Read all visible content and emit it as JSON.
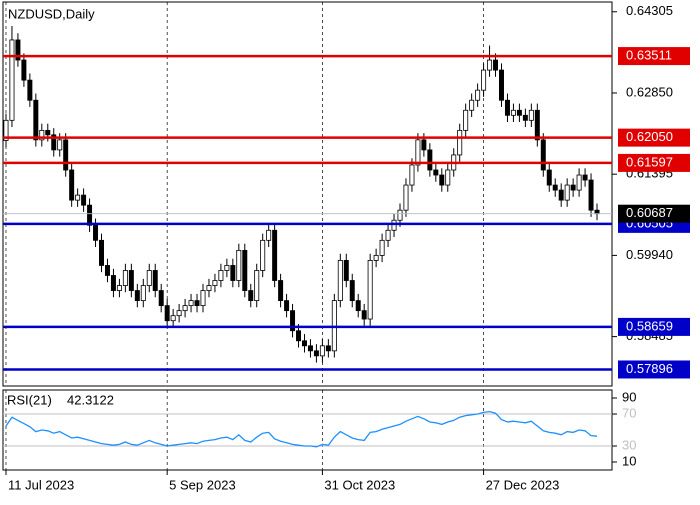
{
  "chart_data": {
    "type": "candlestick",
    "title": "NZDUSD,Daily",
    "ohlc": [
      [
        0.62,
        0.6248,
        0.6188,
        0.6236
      ],
      [
        0.6236,
        0.6405,
        0.6224,
        0.638
      ],
      [
        0.638,
        0.6392,
        0.6332,
        0.6344
      ],
      [
        0.6344,
        0.6356,
        0.6296,
        0.6308
      ],
      [
        0.6308,
        0.632,
        0.626,
        0.6272
      ],
      [
        0.6272,
        0.6284,
        0.6189,
        0.6201
      ],
      [
        0.6201,
        0.623,
        0.6189,
        0.6218
      ],
      [
        0.6218,
        0.623,
        0.6198,
        0.621
      ],
      [
        0.621,
        0.6222,
        0.6171,
        0.6183
      ],
      [
        0.6183,
        0.6213,
        0.6171,
        0.6201
      ],
      [
        0.6201,
        0.6213,
        0.6135,
        0.6147
      ],
      [
        0.6147,
        0.6159,
        0.6081,
        0.6093
      ],
      [
        0.6093,
        0.6114,
        0.6081,
        0.6102
      ],
      [
        0.6102,
        0.6114,
        0.6072,
        0.6084
      ],
      [
        0.6084,
        0.6096,
        0.6036,
        0.6048
      ],
      [
        0.6048,
        0.606,
        0.6009,
        0.6021
      ],
      [
        0.6021,
        0.6033,
        0.5964,
        0.5976
      ],
      [
        0.5976,
        0.5988,
        0.5946,
        0.5958
      ],
      [
        0.5958,
        0.597,
        0.5919,
        0.5931
      ],
      [
        0.5931,
        0.5952,
        0.5919,
        0.594
      ],
      [
        0.594,
        0.5979,
        0.5928,
        0.5967
      ],
      [
        0.5967,
        0.5979,
        0.5919,
        0.5931
      ],
      [
        0.5931,
        0.5943,
        0.5901,
        0.5913
      ],
      [
        0.5913,
        0.5952,
        0.5901,
        0.594
      ],
      [
        0.594,
        0.5979,
        0.5928,
        0.5967
      ],
      [
        0.5967,
        0.5979,
        0.5919,
        0.5931
      ],
      [
        0.5931,
        0.5943,
        0.5892,
        0.5904
      ],
      [
        0.5904,
        0.5916,
        0.5865,
        0.5877
      ],
      [
        0.5877,
        0.5898,
        0.5865,
        0.5886
      ],
      [
        0.5886,
        0.5907,
        0.5874,
        0.5895
      ],
      [
        0.5895,
        0.5916,
        0.5883,
        0.5904
      ],
      [
        0.5904,
        0.5925,
        0.5892,
        0.5913
      ],
      [
        0.5913,
        0.5925,
        0.5892,
        0.5904
      ],
      [
        0.5904,
        0.5943,
        0.5892,
        0.5931
      ],
      [
        0.5931,
        0.5952,
        0.5919,
        0.594
      ],
      [
        0.594,
        0.5961,
        0.5928,
        0.5949
      ],
      [
        0.5949,
        0.5979,
        0.5937,
        0.5967
      ],
      [
        0.5967,
        0.5988,
        0.5955,
        0.5976
      ],
      [
        0.5976,
        0.5988,
        0.5937,
        0.5949
      ],
      [
        0.5949,
        0.6015,
        0.5937,
        0.6003
      ],
      [
        0.6003,
        0.6015,
        0.5919,
        0.5931
      ],
      [
        0.5931,
        0.5943,
        0.5901,
        0.5913
      ],
      [
        0.5913,
        0.5979,
        0.5901,
        0.5967
      ],
      [
        0.5967,
        0.6033,
        0.5955,
        0.6021
      ],
      [
        0.6021,
        0.6051,
        0.6009,
        0.6039
      ],
      [
        0.6039,
        0.6051,
        0.5937,
        0.5949
      ],
      [
        0.5949,
        0.5961,
        0.5901,
        0.5913
      ],
      [
        0.5913,
        0.5925,
        0.5883,
        0.5895
      ],
      [
        0.5895,
        0.5907,
        0.5847,
        0.5859
      ],
      [
        0.5859,
        0.5871,
        0.5829,
        0.5841
      ],
      [
        0.5841,
        0.5853,
        0.582,
        0.5832
      ],
      [
        0.5832,
        0.5844,
        0.5811,
        0.5823
      ],
      [
        0.5823,
        0.5835,
        0.5802,
        0.5814
      ],
      [
        0.5814,
        0.5844,
        0.5802,
        0.5832
      ],
      [
        0.5832,
        0.5844,
        0.5811,
        0.5823
      ],
      [
        0.5823,
        0.5925,
        0.5811,
        0.5913
      ],
      [
        0.5913,
        0.5997,
        0.5901,
        0.5985
      ],
      [
        0.5985,
        0.5997,
        0.5937,
        0.5949
      ],
      [
        0.5949,
        0.5961,
        0.5901,
        0.5913
      ],
      [
        0.5913,
        0.5925,
        0.5883,
        0.5895
      ],
      [
        0.5895,
        0.5907,
        0.5868,
        0.588
      ],
      [
        0.588,
        0.5997,
        0.5868,
        0.5985
      ],
      [
        0.5985,
        0.6006,
        0.5973,
        0.5994
      ],
      [
        0.5994,
        0.6033,
        0.5982,
        0.6021
      ],
      [
        0.6021,
        0.6051,
        0.6009,
        0.6039
      ],
      [
        0.6039,
        0.6069,
        0.6027,
        0.6057
      ],
      [
        0.6057,
        0.6087,
        0.6045,
        0.6075
      ],
      [
        0.6075,
        0.6132,
        0.6063,
        0.612
      ],
      [
        0.612,
        0.6168,
        0.6108,
        0.6156
      ],
      [
        0.6156,
        0.6213,
        0.6144,
        0.6201
      ],
      [
        0.6201,
        0.6213,
        0.6171,
        0.6183
      ],
      [
        0.6183,
        0.6195,
        0.6135,
        0.6147
      ],
      [
        0.6147,
        0.6159,
        0.6126,
        0.6138
      ],
      [
        0.6138,
        0.615,
        0.6108,
        0.612
      ],
      [
        0.612,
        0.6159,
        0.6108,
        0.6147
      ],
      [
        0.6147,
        0.6186,
        0.6135,
        0.6174
      ],
      [
        0.6174,
        0.623,
        0.6162,
        0.6218
      ],
      [
        0.6218,
        0.6266,
        0.6206,
        0.6254
      ],
      [
        0.6254,
        0.6284,
        0.6242,
        0.6272
      ],
      [
        0.6272,
        0.6302,
        0.626,
        0.629
      ],
      [
        0.629,
        0.6338,
        0.6278,
        0.6326
      ],
      [
        0.6326,
        0.637,
        0.6314,
        0.6344
      ],
      [
        0.6344,
        0.6356,
        0.6314,
        0.6326
      ],
      [
        0.6326,
        0.6338,
        0.626,
        0.6272
      ],
      [
        0.6272,
        0.6284,
        0.6233,
        0.6245
      ],
      [
        0.6245,
        0.6266,
        0.6233,
        0.6254
      ],
      [
        0.6254,
        0.6266,
        0.6233,
        0.6245
      ],
      [
        0.6245,
        0.6257,
        0.6224,
        0.6236
      ],
      [
        0.6236,
        0.6266,
        0.6224,
        0.6254
      ],
      [
        0.6254,
        0.6266,
        0.6189,
        0.6201
      ],
      [
        0.6201,
        0.6213,
        0.6135,
        0.6147
      ],
      [
        0.6147,
        0.6159,
        0.6108,
        0.612
      ],
      [
        0.612,
        0.6132,
        0.6099,
        0.6111
      ],
      [
        0.6111,
        0.6123,
        0.6081,
        0.6093
      ],
      [
        0.6093,
        0.6132,
        0.6081,
        0.612
      ],
      [
        0.612,
        0.6132,
        0.6099,
        0.6111
      ],
      [
        0.6111,
        0.615,
        0.6099,
        0.6138
      ],
      [
        0.6138,
        0.615,
        0.6117,
        0.6129
      ],
      [
        0.6129,
        0.6141,
        0.6063,
        0.6075
      ],
      [
        0.6075,
        0.6087,
        0.6057,
        0.60687
      ]
    ],
    "current_price": 0.60687,
    "levels": [
      {
        "value": 0.63511,
        "color": "#e00000"
      },
      {
        "value": 0.6205,
        "label": "0.62050",
        "color": "#e00000"
      },
      {
        "value": 0.61597,
        "color": "#e00000"
      },
      {
        "value": 0.60505,
        "color": "#0000c8"
      },
      {
        "value": 0.58659,
        "color": "#0000c8"
      },
      {
        "value": 0.57896,
        "color": "#0000c8"
      }
    ],
    "ylim": [
      0.576,
      0.6448
    ],
    "yticks": [
      0.64305,
      {
        "value": 0.6285,
        "label": "0.62850"
      },
      0.61395,
      {
        "value": 0.5994,
        "label": "0.59940"
      },
      0.58485
    ],
    "xticks": [
      {
        "value": 0,
        "label": "11 Jul 2023"
      },
      {
        "value": 27,
        "label": "5 Sep 2023"
      },
      {
        "value": 53,
        "label": "31 Oct 2023"
      },
      {
        "value": 80,
        "label": "27 Dec 2023"
      }
    ],
    "grid": true,
    "rsi": {
      "name": "RSI(21)",
      "color": "#1e90ff",
      "ylim": [
        0,
        100
      ],
      "yticks": [
        90,
        70,
        30,
        10
      ],
      "levels": [
        70,
        30
      ],
      "values": [
        55,
        66,
        62,
        58,
        54,
        48,
        50,
        49,
        46,
        48,
        44,
        40,
        41,
        39,
        37,
        35,
        33,
        32,
        31,
        32,
        35,
        32,
        31,
        34,
        37,
        34,
        32,
        30,
        31,
        32,
        33,
        34,
        33,
        36,
        37,
        38,
        40,
        41,
        38,
        44,
        37,
        35,
        41,
        46,
        47,
        39,
        36,
        34,
        32,
        31,
        30,
        30,
        29,
        32,
        31,
        41,
        48,
        44,
        40,
        38,
        37,
        47,
        48,
        51,
        53,
        55,
        57,
        61,
        64,
        67,
        64,
        60,
        59,
        57,
        60,
        62,
        66,
        68,
        69,
        70,
        72,
        73,
        71,
        63,
        60,
        61,
        60,
        59,
        61,
        55,
        49,
        47,
        46,
        44,
        48,
        47,
        50,
        49,
        43,
        42.3122
      ]
    }
  }
}
